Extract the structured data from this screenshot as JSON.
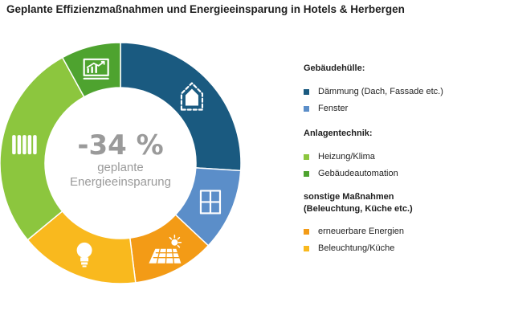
{
  "title": "Geplante Effizienzmaßnahmen und Energieeinsparung in Hotels & Herbergen",
  "center": {
    "value": "-34 %",
    "line1": "geplante",
    "line2": "Energieeinsparung"
  },
  "chart_data": {
    "type": "pie",
    "variant": "donut",
    "categories": [
      "Dämmung (Dach, Fassade etc.)",
      "Fenster",
      "erneuerbare Energien",
      "Beleuchtung/Küche",
      "Heizung/Klima",
      "Gebäudeautomation"
    ],
    "values": [
      26,
      11,
      11,
      16,
      28,
      8
    ],
    "colors": [
      "#1a5a80",
      "#5b8ec9",
      "#f39b16",
      "#f9b91e",
      "#8cc63e",
      "#4ea32f"
    ],
    "icons": [
      "house-icon",
      "window-icon",
      "solar-panel-icon",
      "light-bulb-icon",
      "radiator-icon",
      "monitor-chart-icon"
    ],
    "legend_position": "right"
  },
  "legend": {
    "groups": [
      {
        "title": "Gebäudehülle:",
        "items": [
          {
            "label": "Dämmung (Dach, Fassade etc.)",
            "color": "#1a5a80"
          },
          {
            "label": "Fenster",
            "color": "#5b8ec9"
          }
        ]
      },
      {
        "title": "Anlagentechnik:",
        "items": [
          {
            "label": "Heizung/Klima",
            "color": "#8cc63e"
          },
          {
            "label": "Gebäudeautomation",
            "color": "#4ea32f"
          }
        ]
      },
      {
        "title": "sonstige Maßnahmen\n(Beleuchtung, Küche etc.)",
        "title_line1": "sonstige Maßnahmen",
        "title_line2": "(Beleuchtung, Küche etc.)",
        "items": [
          {
            "label": "erneuerbare Energien",
            "color": "#f39b16"
          },
          {
            "label": "Beleuchtung/Küche",
            "color": "#f9b91e"
          }
        ]
      }
    ]
  }
}
